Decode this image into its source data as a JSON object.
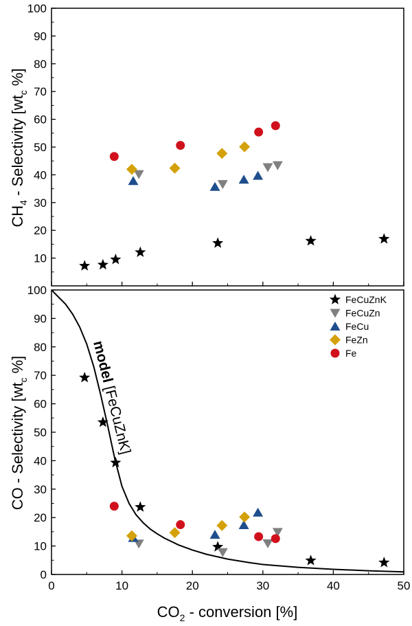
{
  "chart_data": [
    {
      "type": "scatter",
      "panel": "top",
      "ylabel": "CH₄ - Selectivity [wtᴄ %]",
      "ylabel_main": "CH",
      "ylabel_sub": "4",
      "ylabel_mid": " - Selectivity [wt",
      "ylabel_sub2": "c",
      "ylabel_end": " %]",
      "xlim": [
        0,
        50
      ],
      "ylim": [
        0,
        100
      ],
      "yticks": [
        10,
        20,
        30,
        40,
        50,
        60,
        70,
        80,
        90,
        100
      ],
      "series": [
        {
          "name": "FeCuZnK",
          "marker": "star",
          "color": "#000000",
          "x": [
            4.7,
            7.3,
            9.1,
            12.6,
            23.6,
            36.8,
            47.2
          ],
          "y": [
            7.2,
            7.6,
            9.5,
            12.1,
            15.4,
            16.2,
            16.9
          ]
        },
        {
          "name": "FeCuZn",
          "marker": "triangle-down",
          "color": "#808080",
          "x": [
            12.4,
            24.3,
            30.7,
            32.1
          ],
          "y": [
            40.2,
            36.6,
            42.7,
            43.4
          ]
        },
        {
          "name": "FeCu",
          "marker": "triangle-up",
          "color": "#1f4e8c",
          "x": [
            11.6,
            23.2,
            27.3,
            29.3
          ],
          "y": [
            37.8,
            35.7,
            38.3,
            39.7
          ]
        },
        {
          "name": "FeZn",
          "marker": "diamond",
          "color": "#d4a10a",
          "x": [
            11.4,
            17.5,
            24.2,
            27.4
          ],
          "y": [
            42.0,
            42.4,
            47.7,
            50.1
          ]
        },
        {
          "name": "Fe",
          "marker": "circle",
          "color": "#d0101c",
          "x": [
            8.9,
            18.3,
            29.4,
            31.8
          ],
          "y": [
            46.6,
            50.6,
            55.4,
            57.7
          ]
        }
      ]
    },
    {
      "type": "scatter",
      "panel": "bottom",
      "xlabel": "CO₂ - conversion [%]",
      "xlabel_main": "CO",
      "xlabel_sub": "2",
      "xlabel_end": " - conversion [%]",
      "ylabel": "CO - Selectivity [wtᴄ %]",
      "ylabel_main": "CO - Selectivity [wt",
      "ylabel_sub": "c",
      "ylabel_end": " %]",
      "xlim": [
        0,
        50
      ],
      "ylim": [
        0,
        100
      ],
      "xticks": [
        0,
        10,
        20,
        30,
        40,
        50
      ],
      "yticks": [
        0,
        10,
        20,
        30,
        40,
        50,
        60,
        70,
        80,
        90,
        100
      ],
      "legend_position": "top-right",
      "annotation": {
        "bold": "model",
        "rest": " [FeCuZnK]"
      },
      "model_curve": {
        "x": [
          0,
          1,
          2,
          3,
          4,
          5,
          6,
          7,
          8,
          9,
          10,
          11,
          12,
          13,
          14,
          15,
          16,
          18,
          20,
          22,
          25,
          28,
          30,
          35,
          40,
          45,
          50
        ],
        "y": [
          100,
          97.5,
          95,
          91.5,
          87,
          81,
          73,
          63,
          52,
          40.5,
          31,
          25,
          21,
          18.2,
          16,
          14.3,
          12.8,
          10.4,
          8.6,
          7.1,
          5.4,
          4.2,
          3.5,
          2.5,
          1.8,
          1.3,
          0.9
        ]
      },
      "series": [
        {
          "name": "FeCuZnK",
          "marker": "star",
          "color": "#000000",
          "x": [
            4.7,
            7.3,
            9.1,
            12.6,
            23.6,
            36.8,
            47.2
          ],
          "y": [
            69.2,
            53.5,
            39.3,
            23.7,
            9.7,
            4.9,
            4.2
          ]
        },
        {
          "name": "FeCuZn",
          "marker": "triangle-down",
          "color": "#808080",
          "x": [
            12.4,
            24.3,
            30.7,
            32.1
          ],
          "y": [
            10.8,
            7.8,
            10.9,
            14.9
          ]
        },
        {
          "name": "FeCu",
          "marker": "triangle-up",
          "color": "#1f4e8c",
          "x": [
            11.6,
            23.2,
            27.3,
            29.3
          ],
          "y": [
            12.9,
            14.0,
            17.4,
            21.8
          ]
        },
        {
          "name": "FeZn",
          "marker": "diamond",
          "color": "#d4a10a",
          "x": [
            11.4,
            17.5,
            24.2,
            27.4
          ],
          "y": [
            13.6,
            14.7,
            17.2,
            20.2
          ]
        },
        {
          "name": "Fe",
          "marker": "circle",
          "color": "#d0101c",
          "x": [
            8.9,
            18.3,
            29.4,
            31.8
          ],
          "y": [
            24.0,
            17.5,
            13.3,
            12.6
          ]
        }
      ]
    }
  ]
}
